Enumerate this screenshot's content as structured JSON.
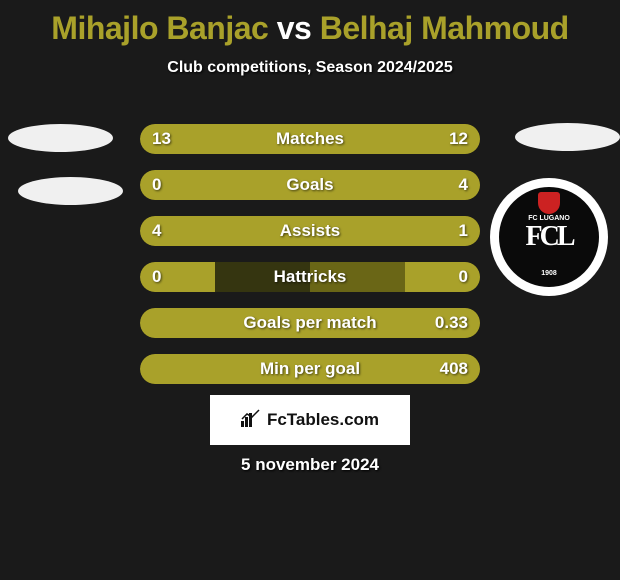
{
  "title": {
    "player1": "Mihajlo Banjac",
    "vs": "vs",
    "player2": "Belhaj Mahmoud",
    "player1_color": "#a9a12a",
    "vs_color": "#ffffff",
    "player2_color": "#a9a12a"
  },
  "subtitle": "Club competitions, Season 2024/2025",
  "club_badge": {
    "monogram": "FCL",
    "top_text": "FC LUGANO",
    "bottom_text": "1908"
  },
  "bars": {
    "bar_bg_dark": "#353510",
    "fill_color_left": "#a9a12a",
    "fill_color_right": "#a9a12a",
    "track_right_color": "#6a6616",
    "rows": [
      {
        "label": "Matches",
        "left": "13",
        "right": "12",
        "left_pct": 52,
        "right_pct": 48
      },
      {
        "label": "Goals",
        "left": "0",
        "right": "4",
        "left_pct": 18,
        "right_pct": 82
      },
      {
        "label": "Assists",
        "left": "4",
        "right": "1",
        "left_pct": 78,
        "right_pct": 22
      },
      {
        "label": "Hattricks",
        "left": "0",
        "right": "0",
        "left_pct": 22,
        "right_pct": 22
      },
      {
        "label": "Goals per match",
        "left": "",
        "right": "0.33",
        "left_pct": 35,
        "right_pct": 65
      },
      {
        "label": "Min per goal",
        "left": "",
        "right": "408",
        "left_pct": 40,
        "right_pct": 60
      }
    ]
  },
  "footer": {
    "logo_text": "FcTables.com",
    "date": "5 november 2024"
  },
  "colors": {
    "page_bg": "#1a1a1a",
    "text_white": "#ffffff"
  }
}
